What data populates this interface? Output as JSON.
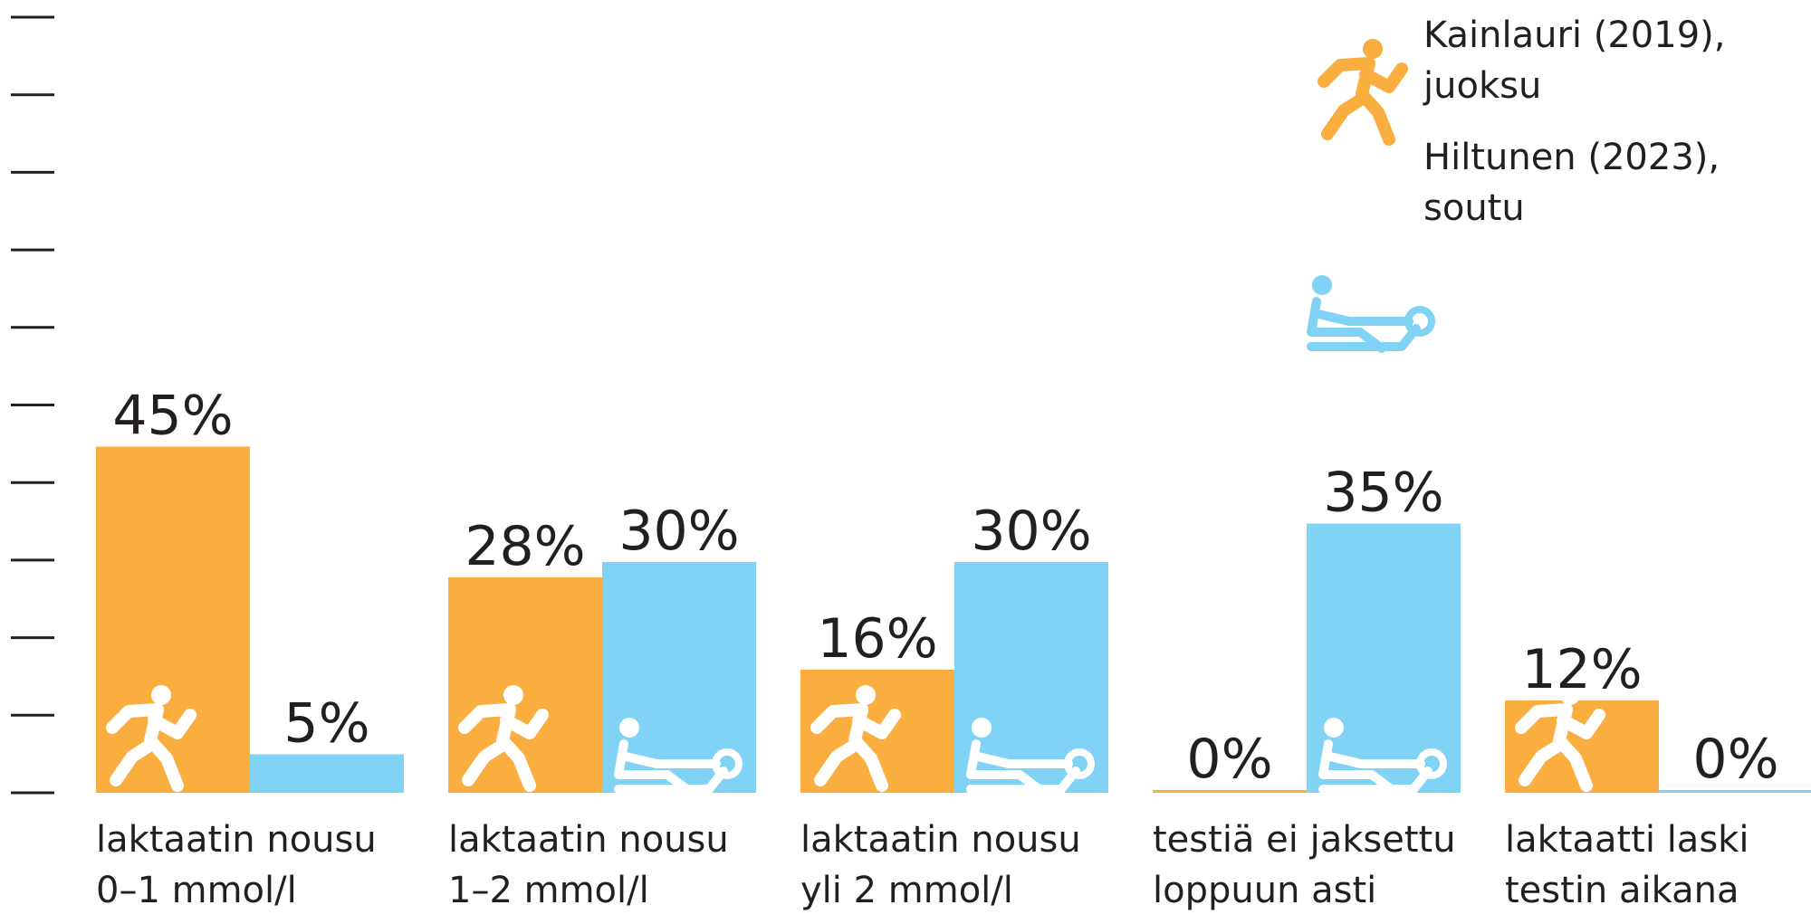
{
  "chart_data": {
    "type": "bar",
    "categories": [
      [
        "laktaatin nousu",
        "0–1 mmol/l"
      ],
      [
        "laktaatin nousu",
        "1–2 mmol/l"
      ],
      [
        "laktaatin nousu",
        "yli 2 mmol/l"
      ],
      [
        "testiä ei jaksettu",
        "loppuun asti"
      ],
      [
        "laktaatti laski",
        "testin aikana"
      ]
    ],
    "series": [
      {
        "name": [
          "Kainlauri (2019),",
          "juoksu"
        ],
        "icon": "runner-icon",
        "color": "#f9ae3f",
        "values": [
          45,
          28,
          16,
          0,
          12
        ],
        "labels": [
          "45%",
          "28%",
          "16%",
          "0%",
          "12%"
        ]
      },
      {
        "name": [
          "Hiltunen (2023),",
          "soutu"
        ],
        "icon": "rower-icon",
        "color": "#80d3f5",
        "values": [
          5,
          30,
          30,
          35,
          0
        ],
        "labels": [
          "5%",
          "30%",
          "30%",
          "35%",
          "0%"
        ]
      }
    ],
    "ylim": [
      0,
      100
    ],
    "yticks": [
      0,
      10,
      20,
      30,
      40,
      50,
      60,
      70,
      80,
      90,
      100
    ],
    "tick_labels_visible": false,
    "legend_position": "top-right",
    "grid": false
  }
}
